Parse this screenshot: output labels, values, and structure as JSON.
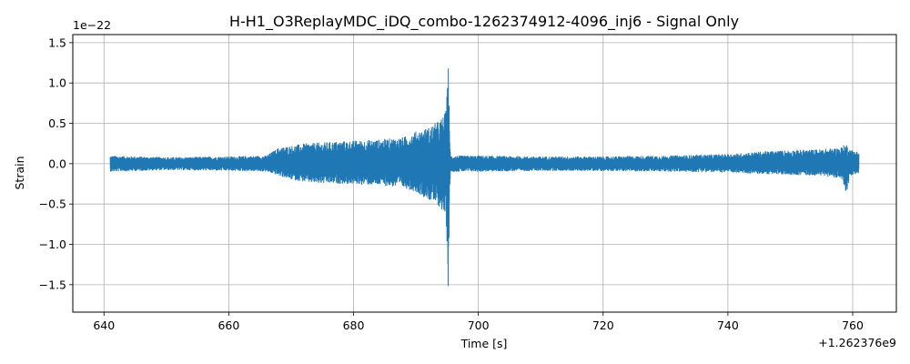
{
  "chart_data": {
    "type": "line",
    "title": "H-H1_O3ReplayMDC_iDQ_combo-1262374912-4096_inj6 - Signal Only",
    "xlabel": "Time [s]",
    "ylabel": "Strain",
    "x_offset_label": "+1.262376e9",
    "y_exponent_label": "1e−22",
    "xlim": [
      635,
      767
    ],
    "ylim": [
      -1.84,
      1.6
    ],
    "x_ticks": [
      640,
      660,
      680,
      700,
      720,
      740,
      760
    ],
    "x_tick_labels": [
      "640",
      "660",
      "680",
      "700",
      "720",
      "740",
      "760"
    ],
    "y_ticks": [
      -1.5,
      -1.0,
      -0.5,
      0.0,
      0.5,
      1.0,
      1.5
    ],
    "y_tick_labels": [
      "−1.5",
      "−1.0",
      "−0.5",
      "0.0",
      "0.5",
      "1.0",
      "1.5"
    ],
    "grid": true,
    "line_color": "#1f77b4",
    "x_range": [
      641.0,
      761.0
    ],
    "series": [
      {
        "name": "",
        "description": "strain envelope",
        "envelope_upper": [
          [
            641,
            0.1
          ],
          [
            650,
            0.08
          ],
          [
            660,
            0.09
          ],
          [
            666,
            0.1
          ],
          [
            668,
            0.2
          ],
          [
            672,
            0.25
          ],
          [
            678,
            0.28
          ],
          [
            684,
            0.3
          ],
          [
            688,
            0.33
          ],
          [
            690,
            0.4
          ],
          [
            692,
            0.45
          ],
          [
            693,
            0.5
          ],
          [
            694,
            0.55
          ],
          [
            694.8,
            0.65
          ],
          [
            695.0,
            0.9
          ],
          [
            695.2,
            1.45
          ],
          [
            695.4,
            0.3
          ],
          [
            695.6,
            0.1
          ],
          [
            700,
            0.1
          ],
          [
            710,
            0.09
          ],
          [
            720,
            0.09
          ],
          [
            730,
            0.1
          ],
          [
            740,
            0.12
          ],
          [
            745,
            0.15
          ],
          [
            750,
            0.17
          ],
          [
            755,
            0.18
          ],
          [
            758,
            0.2
          ],
          [
            759,
            0.25
          ],
          [
            759.5,
            0.18
          ],
          [
            761,
            0.15
          ]
        ],
        "envelope_lower": [
          [
            641,
            -0.1
          ],
          [
            650,
            -0.08
          ],
          [
            660,
            -0.09
          ],
          [
            666,
            -0.1
          ],
          [
            668,
            -0.15
          ],
          [
            670,
            -0.2
          ],
          [
            674,
            -0.25
          ],
          [
            678,
            -0.25
          ],
          [
            684,
            -0.27
          ],
          [
            688,
            -0.3
          ],
          [
            690,
            -0.35
          ],
          [
            692,
            -0.45
          ],
          [
            693,
            -0.5
          ],
          [
            694,
            -0.55
          ],
          [
            694.8,
            -0.7
          ],
          [
            695.0,
            -1.0
          ],
          [
            695.2,
            -1.68
          ],
          [
            695.4,
            -0.3
          ],
          [
            695.6,
            -0.1
          ],
          [
            700,
            -0.1
          ],
          [
            710,
            -0.09
          ],
          [
            720,
            -0.09
          ],
          [
            730,
            -0.1
          ],
          [
            740,
            -0.11
          ],
          [
            745,
            -0.13
          ],
          [
            750,
            -0.14
          ],
          [
            755,
            -0.15
          ],
          [
            758,
            -0.18
          ],
          [
            759,
            -0.4
          ],
          [
            759.5,
            -0.15
          ],
          [
            761,
            -0.12
          ]
        ]
      }
    ]
  }
}
